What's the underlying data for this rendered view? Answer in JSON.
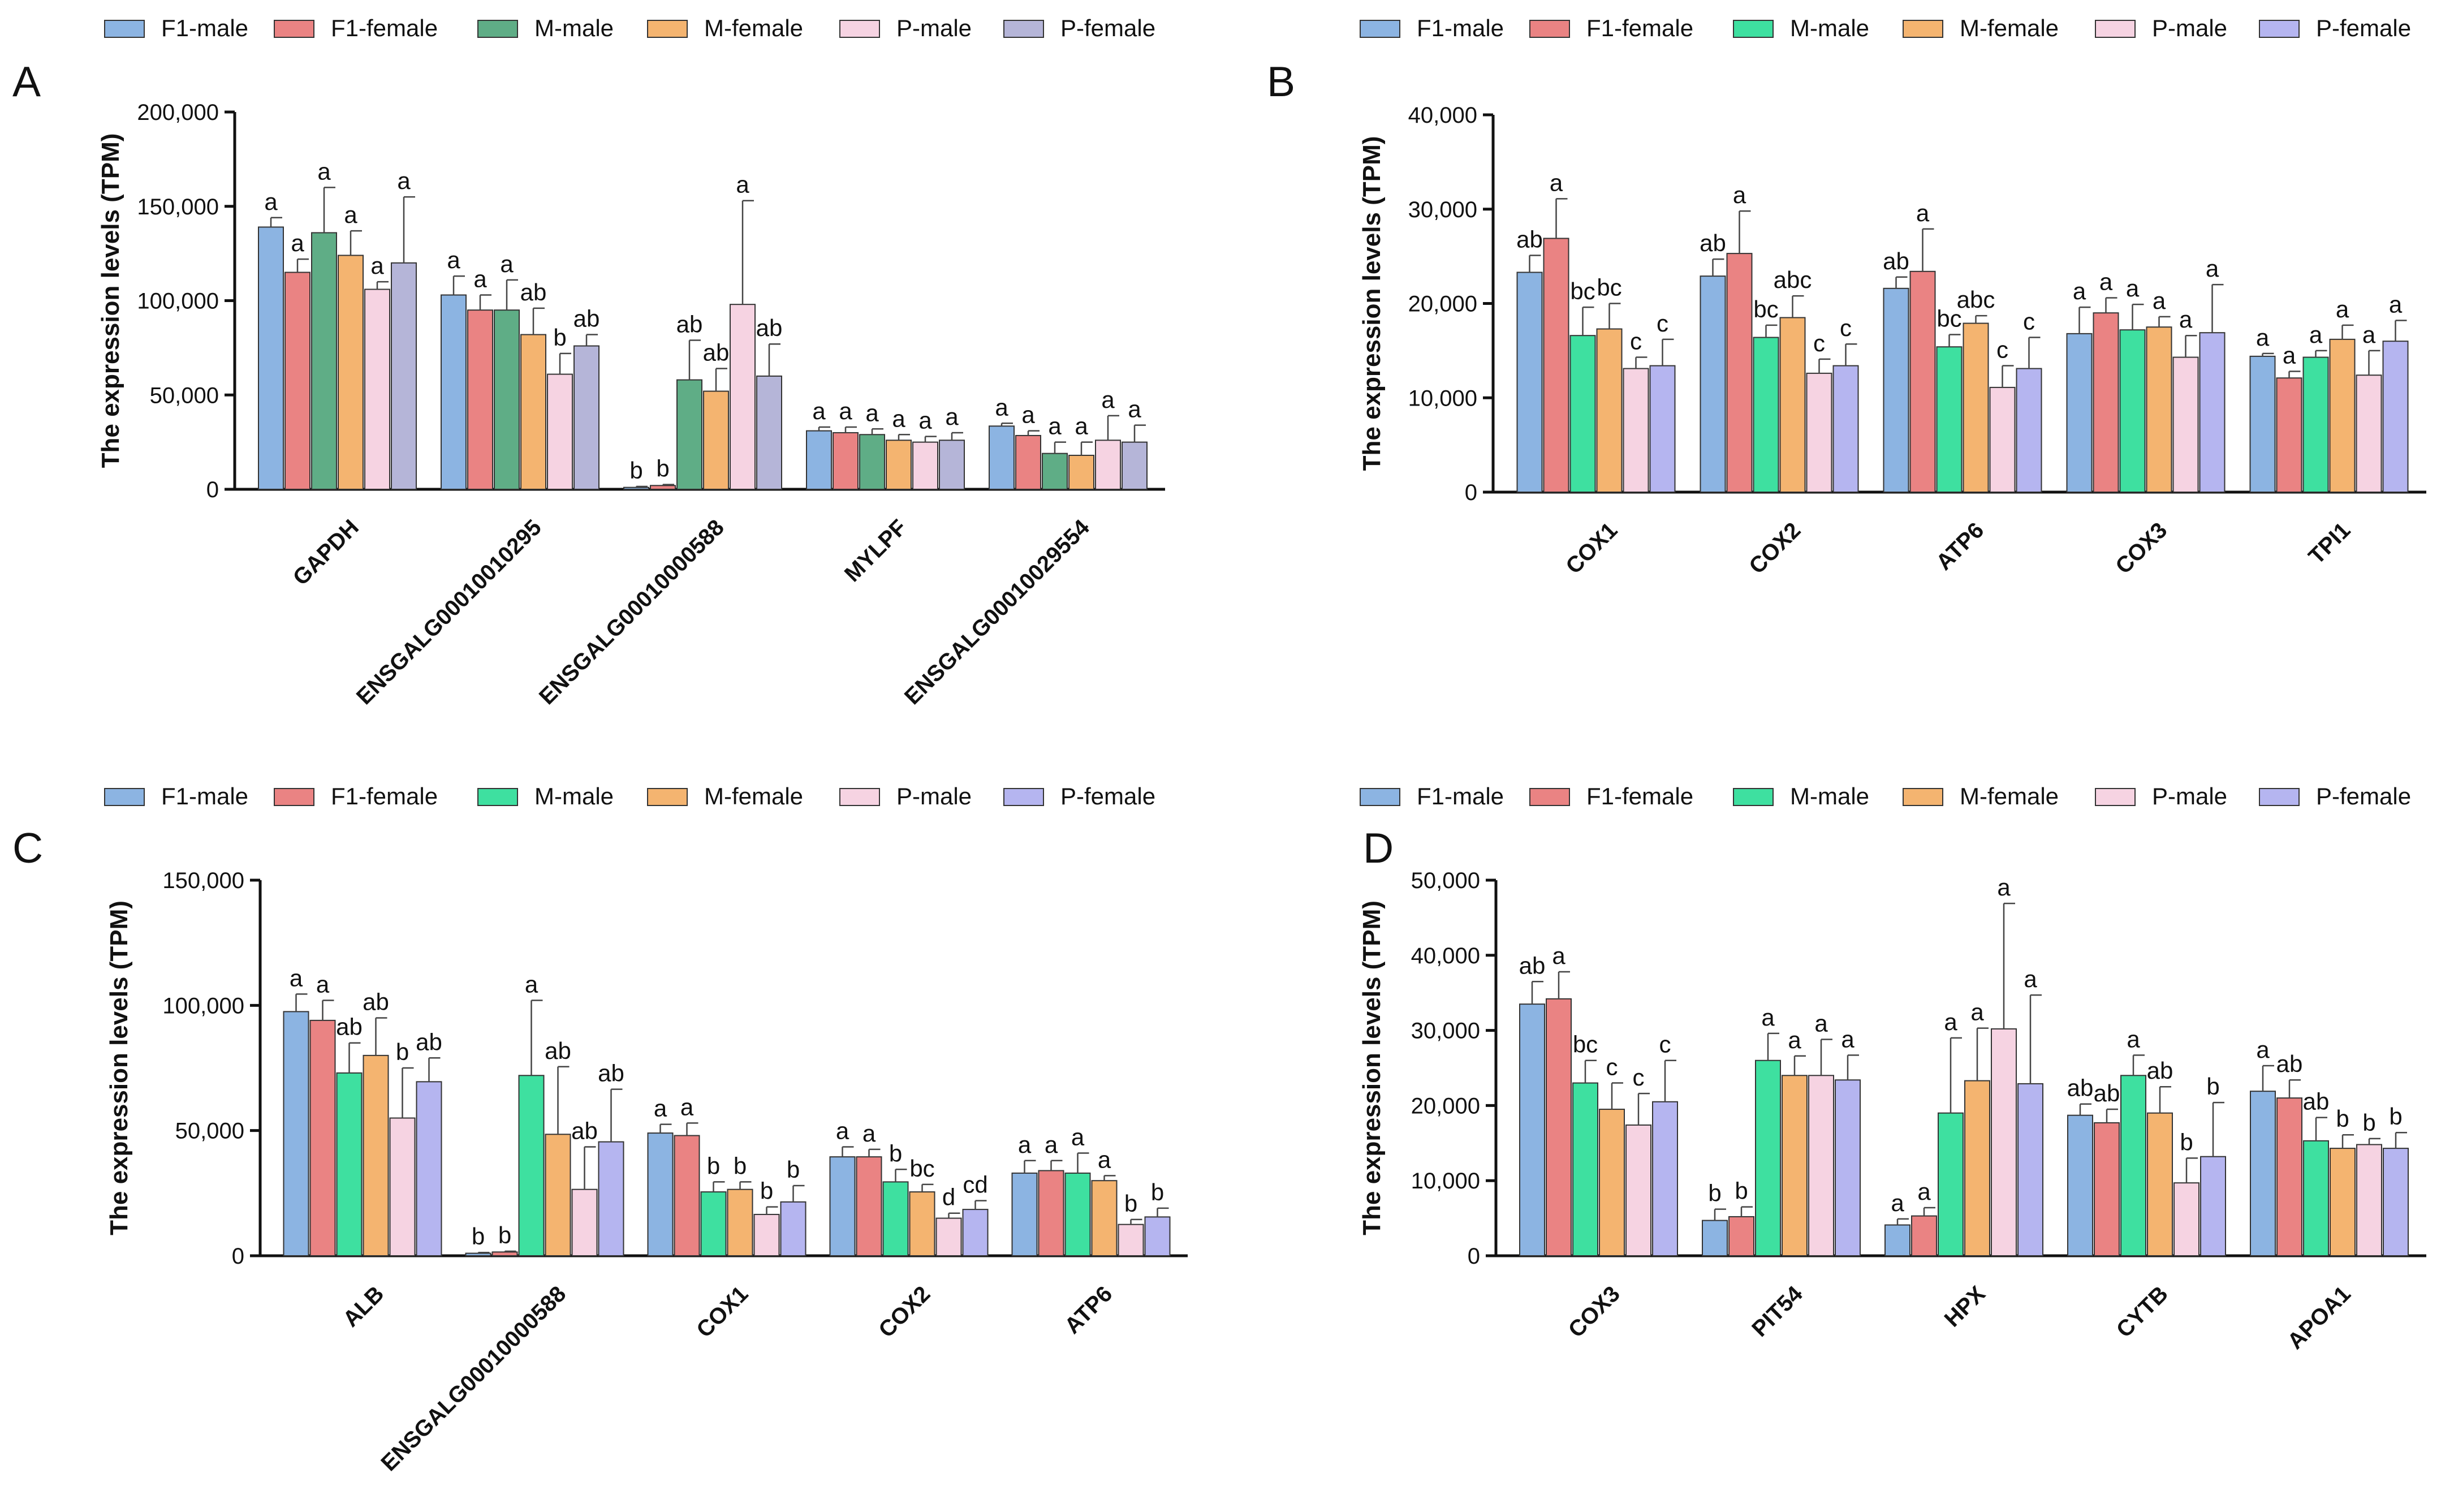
{
  "legend": [
    "F1-male",
    "F1-female",
    "M-male",
    "M-female",
    "P-male",
    "P-female"
  ],
  "colors": {
    "set1": [
      "#8cb4e2",
      "#ea8383",
      "#5fad86",
      "#f4b470",
      "#f6d3e2",
      "#b5b5d8"
    ],
    "set2": [
      "#8cb4e2",
      "#ea8383",
      "#3ee0a0",
      "#f4b470",
      "#f6d3e2",
      "#b5b5f0"
    ],
    "edge": "#333333"
  },
  "chart_data": [
    {
      "panel": "A",
      "type": "bar",
      "ylabel": "The expression levels (TPM)",
      "ylim": [
        0,
        200000
      ],
      "yticks": [
        0,
        50000,
        100000,
        150000,
        200000
      ],
      "ytick_labels": [
        "0",
        "50,000",
        "100,000",
        "150,000",
        "200,000"
      ],
      "categories": [
        "GAPDH",
        "ENSGALG00010010295",
        "ENSGALG00010000588",
        "MYLPF",
        "ENSGALG00010029554"
      ],
      "series": [
        {
          "name": "F1-male",
          "values": [
            139000,
            103000,
            1000,
            31000,
            33500
          ],
          "errors": [
            5000,
            10000,
            500,
            2000,
            1500
          ],
          "labels": [
            "a",
            "a",
            "b",
            "a",
            "a"
          ]
        },
        {
          "name": "F1-female",
          "values": [
            115000,
            95000,
            2000,
            30000,
            28500
          ],
          "errors": [
            7000,
            8000,
            500,
            3000,
            2500
          ],
          "labels": [
            "a",
            "a",
            "b",
            "a",
            "a"
          ]
        },
        {
          "name": "M-male",
          "values": [
            136000,
            95000,
            58000,
            29000,
            19000
          ],
          "errors": [
            24000,
            16000,
            21000,
            3000,
            6000
          ],
          "labels": [
            "a",
            "a",
            "ab",
            "a",
            "a"
          ]
        },
        {
          "name": "M-female",
          "values": [
            124000,
            82000,
            52000,
            26000,
            18000
          ],
          "errors": [
            13000,
            14000,
            12000,
            3000,
            7000
          ],
          "labels": [
            "a",
            "ab",
            "ab",
            "a",
            "a"
          ]
        },
        {
          "name": "P-male",
          "values": [
            106000,
            61000,
            98000,
            25000,
            26000
          ],
          "errors": [
            4000,
            11000,
            55000,
            3000,
            13000
          ],
          "labels": [
            "a",
            "b",
            "a",
            "a",
            "a"
          ]
        },
        {
          "name": "P-female",
          "values": [
            120000,
            76000,
            60000,
            26000,
            25000
          ],
          "errors": [
            35000,
            6000,
            17000,
            4000,
            9000
          ],
          "labels": [
            "a",
            "ab",
            "ab",
            "a",
            "a"
          ]
        }
      ]
    },
    {
      "panel": "B",
      "type": "bar",
      "ylabel": "The expression levels (TPM)",
      "ylim": [
        0,
        40000
      ],
      "yticks": [
        0,
        10000,
        20000,
        30000,
        40000
      ],
      "ytick_labels": [
        "0",
        "10,000",
        "20,000",
        "30,000",
        "40,000"
      ],
      "categories": [
        "COX1",
        "COX2",
        "ATP6",
        "COX3",
        "TPI1"
      ],
      "series": [
        {
          "name": "F1-male",
          "values": [
            23300,
            22900,
            21600,
            16800,
            14400
          ],
          "errors": [
            1800,
            1800,
            1200,
            2800,
            300
          ],
          "labels": [
            "ab",
            "ab",
            "ab",
            "a",
            "a"
          ]
        },
        {
          "name": "F1-female",
          "values": [
            26900,
            25300,
            23400,
            19000,
            12100
          ],
          "errors": [
            4200,
            4500,
            4500,
            1600,
            700
          ],
          "labels": [
            "a",
            "a",
            "a",
            "a",
            "a"
          ]
        },
        {
          "name": "M-male",
          "values": [
            16600,
            16400,
            15400,
            17200,
            14300
          ],
          "errors": [
            3000,
            1300,
            1300,
            2700,
            700
          ],
          "labels": [
            "bc",
            "bc",
            "bc",
            "a",
            "a"
          ]
        },
        {
          "name": "M-female",
          "values": [
            17300,
            18500,
            17900,
            17500,
            16200
          ],
          "errors": [
            2700,
            2300,
            800,
            1100,
            1500
          ],
          "labels": [
            "bc",
            "abc",
            "abc",
            "a",
            "a"
          ]
        },
        {
          "name": "P-male",
          "values": [
            13100,
            12600,
            11100,
            14300,
            12400
          ],
          "errors": [
            1200,
            1500,
            2300,
            2300,
            2600
          ],
          "labels": [
            "c",
            "c",
            "c",
            "a",
            "a"
          ]
        },
        {
          "name": "P-female",
          "values": [
            13400,
            13400,
            13100,
            16900,
            16000
          ],
          "errors": [
            2800,
            2300,
            3300,
            5100,
            2200
          ],
          "labels": [
            "c",
            "c",
            "c",
            "a",
            "a"
          ]
        }
      ]
    },
    {
      "panel": "C",
      "type": "bar",
      "ylabel": "The expression levels (TPM)",
      "ylim": [
        0,
        150000
      ],
      "yticks": [
        0,
        50000,
        100000,
        150000
      ],
      "ytick_labels": [
        "0",
        "50,000",
        "100,000",
        "150,000"
      ],
      "categories": [
        "ALB",
        "ENSGALG00010000588",
        "COX1",
        "COX2",
        "ATP6"
      ],
      "series": [
        {
          "name": "F1-male",
          "values": [
            97500,
            1000,
            49000,
            39500,
            33000
          ],
          "errors": [
            7000,
            300,
            3500,
            4000,
            5000
          ],
          "labels": [
            "a",
            "b",
            "a",
            "a",
            "a"
          ]
        },
        {
          "name": "F1-female",
          "values": [
            94000,
            1500,
            48000,
            39500,
            34000
          ],
          "errors": [
            8000,
            300,
            5000,
            3000,
            4000
          ],
          "labels": [
            "a",
            "b",
            "a",
            "a",
            "a"
          ]
        },
        {
          "name": "M-male",
          "values": [
            73000,
            72000,
            25500,
            29500,
            33000
          ],
          "errors": [
            12000,
            30000,
            4000,
            5000,
            8000
          ],
          "labels": [
            "ab",
            "a",
            "b",
            "b",
            "a"
          ]
        },
        {
          "name": "M-female",
          "values": [
            80000,
            48500,
            26500,
            25500,
            30000
          ],
          "errors": [
            15000,
            27000,
            3000,
            3000,
            2000
          ],
          "labels": [
            "ab",
            "ab",
            "b",
            "bc",
            "a"
          ]
        },
        {
          "name": "P-male",
          "values": [
            55000,
            26500,
            16500,
            15000,
            12500
          ],
          "errors": [
            20000,
            17000,
            3000,
            2000,
            2000
          ],
          "labels": [
            "b",
            "ab",
            "b",
            "d",
            "b"
          ]
        },
        {
          "name": "P-female",
          "values": [
            69500,
            45500,
            21500,
            18500,
            15500
          ],
          "errors": [
            9500,
            21000,
            6500,
            3500,
            3500
          ],
          "labels": [
            "ab",
            "ab",
            "b",
            "cd",
            "b"
          ]
        }
      ]
    },
    {
      "panel": "D",
      "type": "bar",
      "ylabel": "The expression levels (TPM)",
      "ylim": [
        0,
        50000
      ],
      "yticks": [
        0,
        10000,
        20000,
        30000,
        40000,
        50000
      ],
      "ytick_labels": [
        "0",
        "10,000",
        "20,000",
        "30,000",
        "40,000",
        "50,000"
      ],
      "categories": [
        "COX3",
        "PIT54",
        "HPX",
        "CYTB",
        "APOA1"
      ],
      "series": [
        {
          "name": "F1-male",
          "values": [
            33500,
            4700,
            4100,
            18700,
            21900
          ],
          "errors": [
            3000,
            1500,
            800,
            1500,
            3400
          ],
          "labels": [
            "ab",
            "b",
            "a",
            "ab",
            "a"
          ]
        },
        {
          "name": "F1-female",
          "values": [
            34200,
            5200,
            5300,
            17700,
            21000
          ],
          "errors": [
            3600,
            1300,
            1100,
            1800,
            2400
          ],
          "labels": [
            "a",
            "b",
            "a",
            "ab",
            "ab"
          ]
        },
        {
          "name": "M-male",
          "values": [
            23000,
            26000,
            19000,
            24000,
            15300
          ],
          "errors": [
            3000,
            3600,
            10000,
            2700,
            3100
          ],
          "labels": [
            "bc",
            "a",
            "a",
            "a",
            "ab"
          ]
        },
        {
          "name": "M-female",
          "values": [
            19500,
            24000,
            23300,
            19000,
            14300
          ],
          "errors": [
            3500,
            2600,
            7000,
            3500,
            1800
          ],
          "labels": [
            "c",
            "a",
            "a",
            "ab",
            "b"
          ]
        },
        {
          "name": "P-male",
          "values": [
            17400,
            24000,
            30200,
            9700,
            14800
          ],
          "errors": [
            4200,
            4800,
            16700,
            3300,
            800
          ],
          "labels": [
            "c",
            "a",
            "a",
            "b",
            "b"
          ]
        },
        {
          "name": "P-female",
          "values": [
            20500,
            23400,
            22900,
            13200,
            14300
          ],
          "errors": [
            5500,
            3300,
            11800,
            7200,
            2100
          ],
          "labels": [
            "c",
            "a",
            "a",
            "b",
            "b"
          ]
        }
      ]
    }
  ]
}
